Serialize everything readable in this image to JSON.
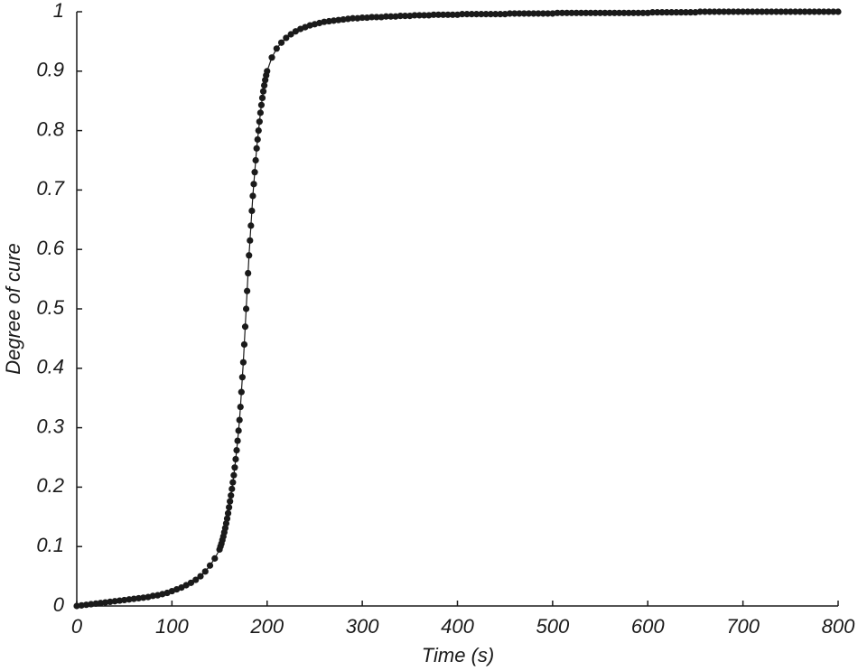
{
  "chart_data": {
    "type": "line",
    "x_label": "Time  (s)",
    "y_label": "Degree of cure",
    "x": [
      0,
      5,
      10,
      15,
      20,
      25,
      30,
      35,
      40,
      45,
      50,
      55,
      60,
      65,
      70,
      75,
      80,
      85,
      90,
      95,
      100,
      105,
      110,
      115,
      120,
      125,
      130,
      135,
      140,
      145,
      150,
      151,
      152,
      153,
      154,
      155,
      156,
      157,
      158,
      159,
      160,
      161,
      162,
      163,
      164,
      165,
      166,
      167,
      168,
      169,
      170,
      171,
      172,
      173,
      174,
      175,
      176,
      177,
      178,
      179,
      180,
      181,
      182,
      183,
      184,
      185,
      186,
      187,
      188,
      189,
      190,
      191,
      192,
      193,
      194,
      195,
      196,
      197,
      198,
      199,
      200,
      205,
      210,
      215,
      220,
      225,
      230,
      235,
      240,
      245,
      250,
      255,
      260,
      265,
      270,
      275,
      280,
      285,
      290,
      295,
      300,
      305,
      310,
      315,
      320,
      325,
      330,
      335,
      340,
      345,
      350,
      355,
      360,
      365,
      370,
      375,
      380,
      385,
      390,
      395,
      400,
      405,
      410,
      415,
      420,
      425,
      430,
      435,
      440,
      445,
      450,
      455,
      460,
      465,
      470,
      475,
      480,
      485,
      490,
      495,
      500,
      505,
      510,
      515,
      520,
      525,
      530,
      535,
      540,
      545,
      550,
      555,
      560,
      565,
      570,
      575,
      580,
      585,
      590,
      595,
      600,
      605,
      610,
      615,
      620,
      625,
      630,
      635,
      640,
      645,
      650,
      655,
      660,
      665,
      670,
      675,
      680,
      685,
      690,
      695,
      700,
      705,
      710,
      715,
      720,
      725,
      730,
      735,
      740,
      745,
      750,
      755,
      760,
      765,
      770,
      775,
      780,
      785,
      790,
      795,
      800
    ],
    "series": [
      {
        "color": "#1a1a1a",
        "values": [
          0,
          0.001,
          0.002,
          0.003,
          0.004,
          0.005,
          0.006,
          0.007,
          0.008,
          0.009,
          0.01,
          0.011,
          0.012,
          0.013,
          0.014,
          0.015,
          0.017,
          0.018,
          0.02,
          0.022,
          0.025,
          0.028,
          0.031,
          0.035,
          0.039,
          0.044,
          0.05,
          0.058,
          0.068,
          0.08,
          0.095,
          0.1,
          0.105,
          0.111,
          0.117,
          0.124,
          0.131,
          0.139,
          0.147,
          0.156,
          0.166,
          0.176,
          0.186,
          0.197,
          0.208,
          0.22,
          0.233,
          0.247,
          0.262,
          0.278,
          0.295,
          0.313,
          0.335,
          0.36,
          0.385,
          0.41,
          0.44,
          0.47,
          0.5,
          0.53,
          0.56,
          0.59,
          0.615,
          0.64,
          0.665,
          0.69,
          0.71,
          0.73,
          0.75,
          0.77,
          0.785,
          0.8,
          0.815,
          0.83,
          0.843,
          0.855,
          0.866,
          0.876,
          0.885,
          0.893,
          0.9,
          0.923,
          0.938,
          0.948,
          0.956,
          0.962,
          0.967,
          0.971,
          0.974,
          0.977,
          0.979,
          0.981,
          0.983,
          0.984,
          0.985,
          0.986,
          0.987,
          0.988,
          0.989,
          0.989,
          0.99,
          0.99,
          0.991,
          0.991,
          0.991,
          0.992,
          0.992,
          0.992,
          0.993,
          0.993,
          0.993,
          0.994,
          0.994,
          0.994,
          0.994,
          0.995,
          0.995,
          0.995,
          0.995,
          0.995,
          0.995,
          0.996,
          0.996,
          0.996,
          0.996,
          0.996,
          0.996,
          0.996,
          0.996,
          0.996,
          0.996,
          0.997,
          0.997,
          0.997,
          0.997,
          0.997,
          0.997,
          0.997,
          0.997,
          0.997,
          0.997,
          0.998,
          0.998,
          0.998,
          0.998,
          0.998,
          0.998,
          0.998,
          0.998,
          0.998,
          0.998,
          0.998,
          0.998,
          0.998,
          0.998,
          0.998,
          0.998,
          0.998,
          0.998,
          0.998,
          0.998,
          0.999,
          0.999,
          0.999,
          0.999,
          0.999,
          0.999,
          0.999,
          0.999,
          0.999,
          0.999,
          1,
          1,
          1,
          1,
          1,
          1,
          1,
          1,
          1,
          1,
          1,
          1,
          1,
          1,
          1,
          1,
          1,
          1,
          1,
          1,
          1,
          1,
          1,
          1,
          1,
          1,
          1,
          1,
          1,
          1
        ]
      }
    ],
    "xlim": [
      0,
      800
    ],
    "xticks": [
      0,
      100,
      200,
      300,
      400,
      500,
      600,
      700,
      800
    ],
    "ylim": [
      0,
      1
    ],
    "yticks": [
      0,
      0.1,
      0.2,
      0.3,
      0.4,
      0.5,
      0.6,
      0.7,
      0.8,
      0.9,
      1
    ],
    "grid": false
  }
}
